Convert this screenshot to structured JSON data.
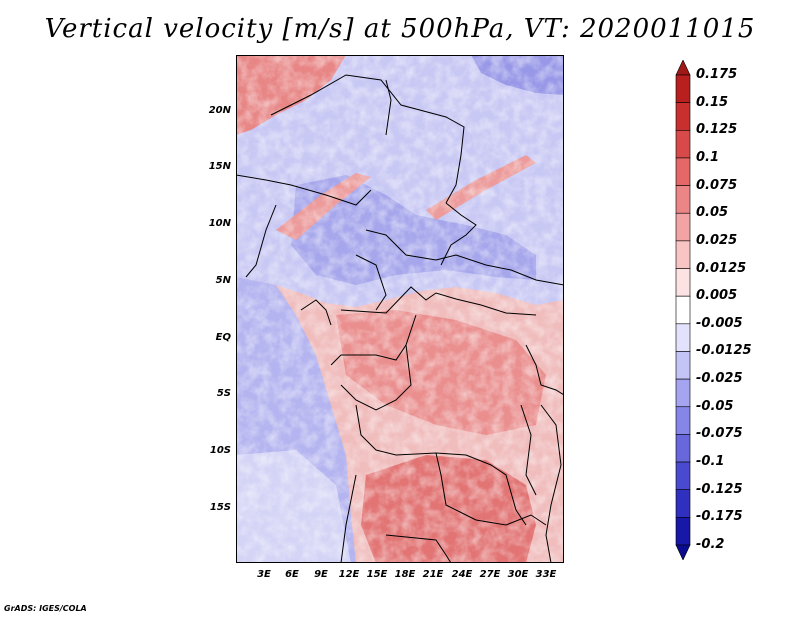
{
  "title": "Vertical velocity [m/s] at 500hPa, VT: 2020011015",
  "credit": "GrADS: IGES/COLA",
  "latitude_labels": [
    "20N",
    "15N",
    "10N",
    "5N",
    "EQ",
    "5S",
    "10S",
    "15S"
  ],
  "longitude_labels": [
    "3E",
    "6E",
    "9E",
    "12E",
    "15E",
    "18E",
    "21E",
    "24E",
    "27E",
    "30E",
    "33E"
  ],
  "colorbar": {
    "labels": [
      "0.175",
      "0.15",
      "0.125",
      "0.1",
      "0.075",
      "0.05",
      "0.025",
      "0.0125",
      "0.005",
      "-0.005",
      "-0.0125",
      "-0.025",
      "-0.05",
      "-0.075",
      "-0.1",
      "-0.125",
      "-0.175",
      "-0.2"
    ],
    "colors": [
      "#a01818",
      "#b82020",
      "#c83030",
      "#d84a4a",
      "#e46868",
      "#ec8686",
      "#f2a4a4",
      "#f8c4c4",
      "#fce2e2",
      "#ffffff",
      "#e2e2fc",
      "#c4c4f6",
      "#a4a4f0",
      "#8686e8",
      "#6868dc",
      "#4a4ad0",
      "#3030c0",
      "#1818a8",
      "#0c0c90"
    ]
  },
  "palette": {
    "background": "#ffffff",
    "map_base": "#f0bcbc",
    "pos_strong": "#e06060",
    "pos_mid": "#ec8c8c",
    "neg_light": "#c8c8f4",
    "neg_mid": "#9898e8",
    "neg_strong": "#6464d8",
    "border": "#000000"
  }
}
